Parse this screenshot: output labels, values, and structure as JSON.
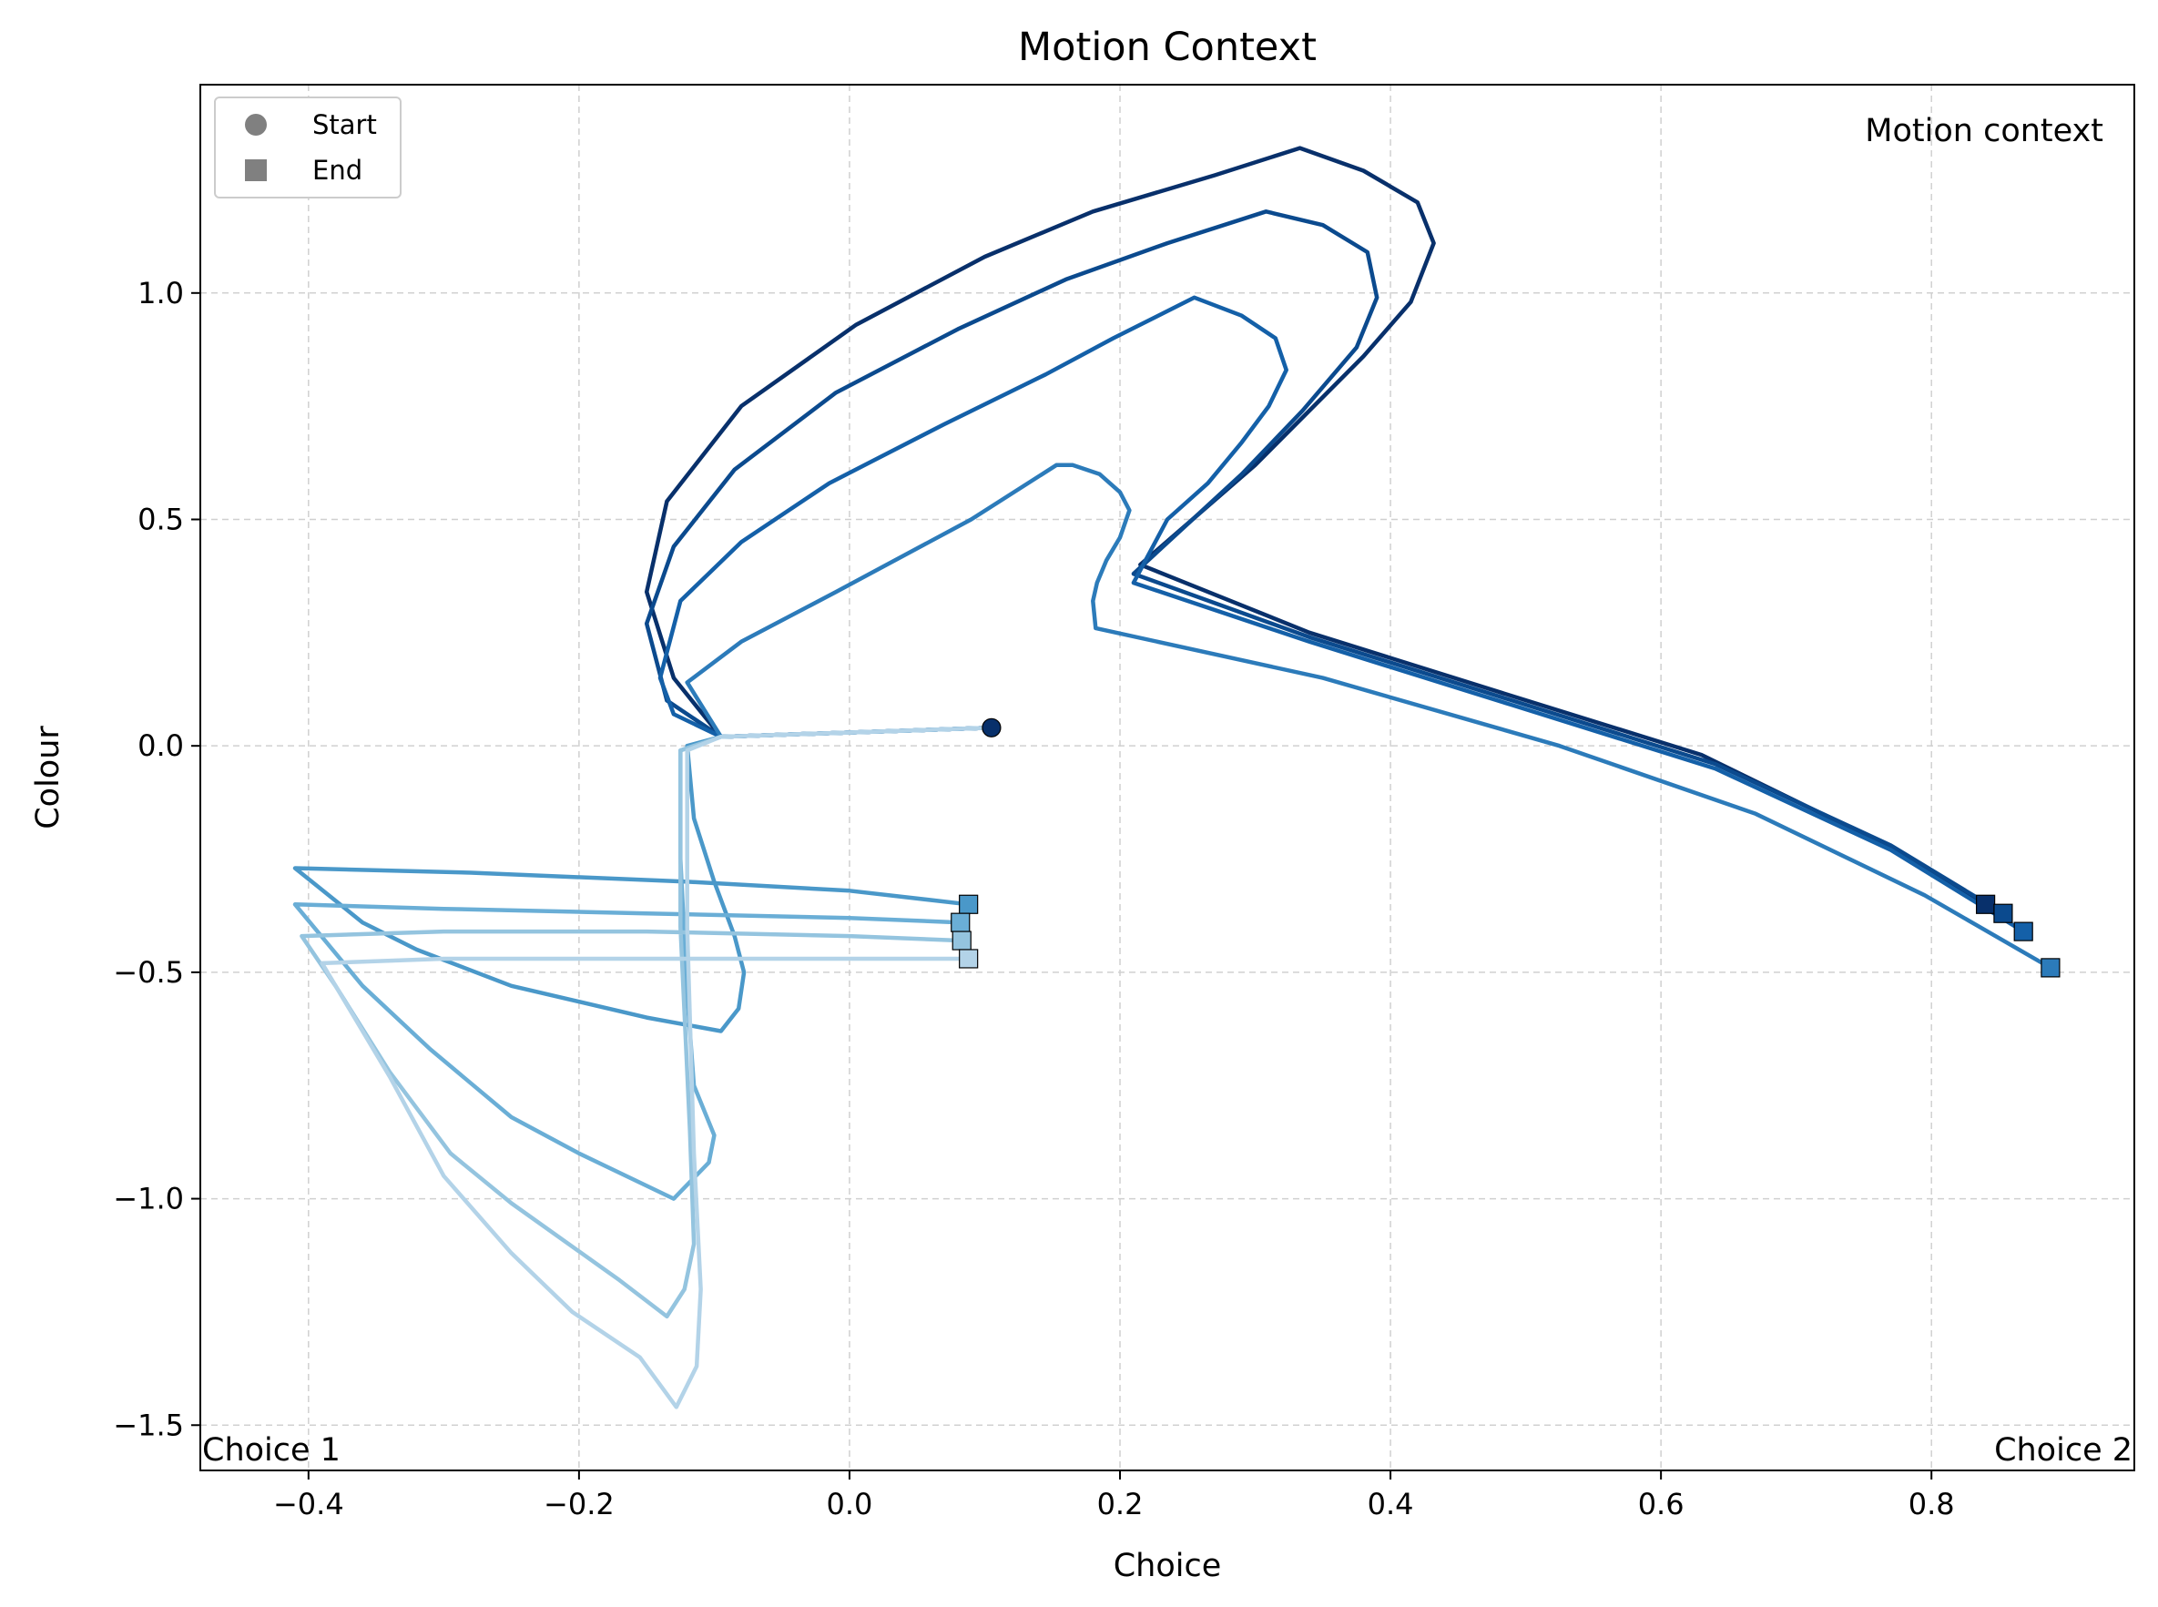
{
  "chart_data": {
    "type": "line",
    "title": "Motion Context",
    "xlabel": "Choice",
    "ylabel": "Colour",
    "xlim": [
      -0.48,
      0.95
    ],
    "ylim": [
      -1.6,
      1.46
    ],
    "x_ticks": [
      -0.4,
      -0.2,
      0.0,
      0.2,
      0.4,
      0.6,
      0.8
    ],
    "x_tick_labels": [
      "−0.4",
      "−0.2",
      "0.0",
      "0.2",
      "0.4",
      "0.6",
      "0.8"
    ],
    "y_ticks": [
      1.0,
      0.5,
      0.0,
      -0.5,
      -1.0,
      -1.5
    ],
    "y_tick_labels": [
      "1.0",
      "0.5",
      "0.0",
      "−0.5",
      "−1.0",
      "−1.5"
    ],
    "grid": true,
    "legend": {
      "placement": "upper-left",
      "entries": [
        {
          "label": "Start",
          "marker": "circle"
        },
        {
          "label": "End",
          "marker": "square"
        }
      ]
    },
    "annotations": {
      "context": "Motion context",
      "left_corner": "Choice 1",
      "right_corner": "Choice 2"
    },
    "start_point": {
      "x": 0.105,
      "y": 0.04,
      "color": "#08306b"
    },
    "series": [
      {
        "color": "#08306b",
        "points": [
          [
            0.105,
            0.04
          ],
          [
            -0.095,
            0.02
          ],
          [
            -0.13,
            0.15
          ],
          [
            -0.15,
            0.34
          ],
          [
            -0.135,
            0.54
          ],
          [
            -0.08,
            0.75
          ],
          [
            0.005,
            0.93
          ],
          [
            0.1,
            1.08
          ],
          [
            0.18,
            1.18
          ],
          [
            0.27,
            1.26
          ],
          [
            0.333,
            1.32
          ],
          [
            0.38,
            1.27
          ],
          [
            0.42,
            1.2
          ],
          [
            0.432,
            1.11
          ],
          [
            0.415,
            0.98
          ],
          [
            0.38,
            0.86
          ],
          [
            0.3,
            0.62
          ],
          [
            0.215,
            0.4
          ],
          [
            0.34,
            0.25
          ],
          [
            0.49,
            0.11
          ],
          [
            0.63,
            -0.02
          ],
          [
            0.76,
            -0.21
          ],
          [
            0.84,
            -0.35
          ]
        ]
      },
      {
        "color": "#0b4a8e",
        "points": [
          [
            0.105,
            0.04
          ],
          [
            -0.095,
            0.02
          ],
          [
            -0.135,
            0.1
          ],
          [
            -0.15,
            0.27
          ],
          [
            -0.13,
            0.44
          ],
          [
            -0.085,
            0.61
          ],
          [
            -0.01,
            0.78
          ],
          [
            0.08,
            0.92
          ],
          [
            0.16,
            1.03
          ],
          [
            0.235,
            1.11
          ],
          [
            0.308,
            1.18
          ],
          [
            0.35,
            1.15
          ],
          [
            0.383,
            1.09
          ],
          [
            0.39,
            0.99
          ],
          [
            0.375,
            0.88
          ],
          [
            0.335,
            0.74
          ],
          [
            0.29,
            0.6
          ],
          [
            0.21,
            0.38
          ],
          [
            0.34,
            0.24
          ],
          [
            0.49,
            0.1
          ],
          [
            0.64,
            -0.04
          ],
          [
            0.77,
            -0.22
          ],
          [
            0.853,
            -0.37
          ]
        ]
      },
      {
        "color": "#1460a8",
        "points": [
          [
            0.105,
            0.04
          ],
          [
            -0.095,
            0.02
          ],
          [
            -0.13,
            0.07
          ],
          [
            -0.14,
            0.15
          ],
          [
            -0.125,
            0.32
          ],
          [
            -0.08,
            0.45
          ],
          [
            -0.015,
            0.58
          ],
          [
            0.07,
            0.71
          ],
          [
            0.145,
            0.82
          ],
          [
            0.195,
            0.9
          ],
          [
            0.255,
            0.99
          ],
          [
            0.29,
            0.95
          ],
          [
            0.315,
            0.9
          ],
          [
            0.323,
            0.83
          ],
          [
            0.31,
            0.75
          ],
          [
            0.29,
            0.67
          ],
          [
            0.265,
            0.58
          ],
          [
            0.235,
            0.5
          ],
          [
            0.21,
            0.36
          ],
          [
            0.34,
            0.23
          ],
          [
            0.49,
            0.09
          ],
          [
            0.64,
            -0.05
          ],
          [
            0.77,
            -0.23
          ],
          [
            0.868,
            -0.41
          ]
        ]
      },
      {
        "color": "#2c7bba",
        "points": [
          [
            0.105,
            0.04
          ],
          [
            -0.095,
            0.02
          ],
          [
            -0.12,
            0.14
          ],
          [
            -0.08,
            0.23
          ],
          [
            -0.01,
            0.34
          ],
          [
            0.09,
            0.5
          ],
          [
            0.153,
            0.62
          ],
          [
            0.165,
            0.62
          ],
          [
            0.185,
            0.6
          ],
          [
            0.2,
            0.56
          ],
          [
            0.207,
            0.52
          ],
          [
            0.2,
            0.46
          ],
          [
            0.19,
            0.41
          ],
          [
            0.183,
            0.36
          ],
          [
            0.18,
            0.32
          ],
          [
            0.182,
            0.26
          ],
          [
            0.35,
            0.15
          ],
          [
            0.525,
            0.0
          ],
          [
            0.67,
            -0.15
          ],
          [
            0.795,
            -0.33
          ],
          [
            0.888,
            -0.49
          ]
        ]
      },
      {
        "color": "#4a98c9",
        "points": [
          [
            0.105,
            0.04
          ],
          [
            -0.095,
            0.02
          ],
          [
            -0.12,
            0.0
          ],
          [
            -0.115,
            -0.16
          ],
          [
            -0.1,
            -0.3
          ],
          [
            -0.085,
            -0.42
          ],
          [
            -0.078,
            -0.5
          ],
          [
            -0.082,
            -0.58
          ],
          [
            -0.095,
            -0.63
          ],
          [
            -0.15,
            -0.6
          ],
          [
            -0.25,
            -0.53
          ],
          [
            -0.32,
            -0.45
          ],
          [
            -0.36,
            -0.39
          ],
          [
            -0.41,
            -0.27
          ],
          [
            -0.28,
            -0.28
          ],
          [
            -0.12,
            -0.3
          ],
          [
            0.0,
            -0.32
          ],
          [
            0.088,
            -0.35
          ]
        ]
      },
      {
        "color": "#6aaed6",
        "points": [
          [
            0.105,
            0.04
          ],
          [
            -0.095,
            0.02
          ],
          [
            -0.125,
            -0.01
          ],
          [
            -0.125,
            -0.25
          ],
          [
            -0.12,
            -0.55
          ],
          [
            -0.115,
            -0.75
          ],
          [
            -0.1,
            -0.86
          ],
          [
            -0.104,
            -0.92
          ],
          [
            -0.13,
            -1.0
          ],
          [
            -0.2,
            -0.9
          ],
          [
            -0.25,
            -0.82
          ],
          [
            -0.31,
            -0.67
          ],
          [
            -0.36,
            -0.53
          ],
          [
            -0.41,
            -0.35
          ],
          [
            -0.3,
            -0.36
          ],
          [
            -0.15,
            -0.37
          ],
          [
            0.0,
            -0.38
          ],
          [
            0.082,
            -0.39
          ]
        ]
      },
      {
        "color": "#94c4df",
        "points": [
          [
            0.105,
            0.04
          ],
          [
            -0.095,
            0.02
          ],
          [
            -0.125,
            -0.01
          ],
          [
            -0.125,
            -0.4
          ],
          [
            -0.118,
            -0.85
          ],
          [
            -0.115,
            -1.1
          ],
          [
            -0.122,
            -1.2
          ],
          [
            -0.135,
            -1.26
          ],
          [
            -0.17,
            -1.18
          ],
          [
            -0.25,
            -1.01
          ],
          [
            -0.295,
            -0.9
          ],
          [
            -0.34,
            -0.72
          ],
          [
            -0.38,
            -0.53
          ],
          [
            -0.405,
            -0.42
          ],
          [
            -0.3,
            -0.41
          ],
          [
            -0.15,
            -0.41
          ],
          [
            0.0,
            -0.42
          ],
          [
            0.083,
            -0.43
          ]
        ]
      },
      {
        "color": "#b3d3e8",
        "points": [
          [
            0.105,
            0.04
          ],
          [
            -0.095,
            0.02
          ],
          [
            -0.12,
            -0.01
          ],
          [
            -0.12,
            -0.4
          ],
          [
            -0.115,
            -0.9
          ],
          [
            -0.11,
            -1.2
          ],
          [
            -0.113,
            -1.37
          ],
          [
            -0.128,
            -1.46
          ],
          [
            -0.155,
            -1.35
          ],
          [
            -0.205,
            -1.25
          ],
          [
            -0.25,
            -1.12
          ],
          [
            -0.3,
            -0.95
          ],
          [
            -0.34,
            -0.73
          ],
          [
            -0.39,
            -0.48
          ],
          [
            -0.3,
            -0.47
          ],
          [
            -0.15,
            -0.47
          ],
          [
            0.0,
            -0.47
          ],
          [
            0.088,
            -0.47
          ]
        ]
      }
    ]
  }
}
